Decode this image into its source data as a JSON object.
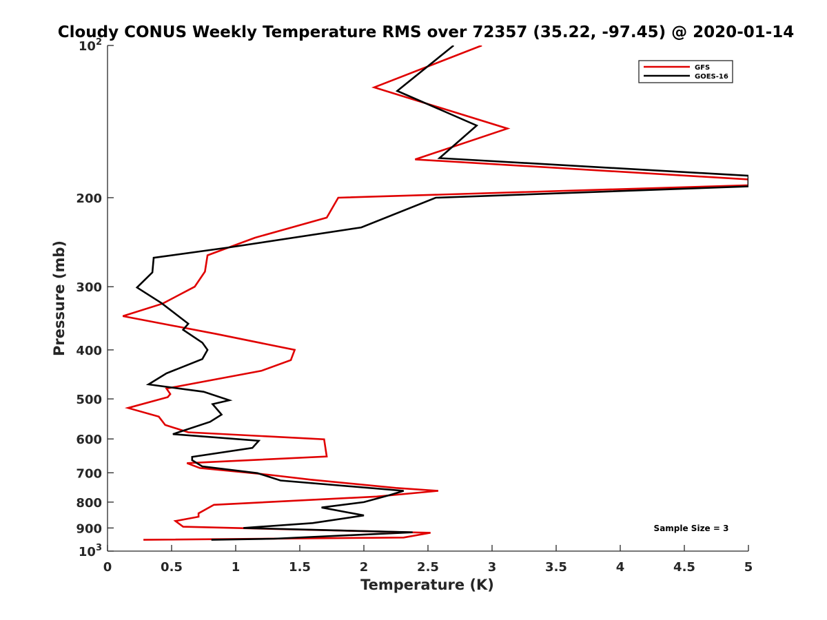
{
  "chart_data": {
    "type": "line",
    "title": "Cloudy CONUS Weekly Temperature RMS over 72357 (35.22, -97.45) @ 2020-01-14",
    "xlabel": "Temperature (K)",
    "ylabel": "Pressure (mb)",
    "xlim": [
      0,
      5
    ],
    "ylim": [
      100,
      1000
    ],
    "y_scale": "log",
    "y_reversed": true,
    "grid": false,
    "legend_position": "top-right",
    "x_ticks": [
      "0",
      "0.5",
      "1",
      "1.5",
      "2",
      "2.5",
      "3",
      "3.5",
      "4",
      "4.5",
      "5"
    ],
    "x_tick_values": [
      0,
      0.5,
      1,
      1.5,
      2,
      2.5,
      3,
      3.5,
      4,
      4.5,
      5
    ],
    "y_ticks": [
      {
        "value": 100,
        "base": "10",
        "exp": "2"
      },
      {
        "value": 200,
        "label": "200"
      },
      {
        "value": 300,
        "label": "300"
      },
      {
        "value": 400,
        "label": "400"
      },
      {
        "value": 500,
        "label": "500"
      },
      {
        "value": 600,
        "label": "600"
      },
      {
        "value": 700,
        "label": "700"
      },
      {
        "value": 800,
        "label": "800"
      },
      {
        "value": 900,
        "label": "900"
      },
      {
        "value": 1000,
        "base": "10",
        "exp": "3"
      }
    ],
    "annotation": "Sample Size = 3",
    "series": [
      {
        "name": "GFS",
        "color": "#e00000",
        "points": [
          [
            2.92,
            100
          ],
          [
            2.08,
            121
          ],
          [
            3.12,
            146
          ],
          [
            2.4,
            168
          ],
          [
            5.0,
            184
          ],
          [
            5.0,
            189
          ],
          [
            1.8,
            200
          ],
          [
            1.71,
            219
          ],
          [
            1.15,
            240
          ],
          [
            0.78,
            260
          ],
          [
            0.76,
            280
          ],
          [
            0.68,
            300
          ],
          [
            0.43,
            324
          ],
          [
            0.12,
            343
          ],
          [
            0.85,
            372
          ],
          [
            1.46,
            400
          ],
          [
            1.43,
            419
          ],
          [
            1.2,
            440
          ],
          [
            0.46,
            477
          ],
          [
            0.49,
            489
          ],
          [
            0.47,
            496
          ],
          [
            0.16,
            521
          ],
          [
            0.4,
            542
          ],
          [
            0.45,
            563
          ],
          [
            0.63,
            582
          ],
          [
            1.69,
            601
          ],
          [
            1.71,
            650
          ],
          [
            0.62,
            670
          ],
          [
            0.72,
            685
          ],
          [
            1.25,
            706
          ],
          [
            1.58,
            722
          ],
          [
            2.25,
            750
          ],
          [
            2.58,
            760
          ],
          [
            2.1,
            780
          ],
          [
            0.83,
            810
          ],
          [
            0.71,
            842
          ],
          [
            0.71,
            855
          ],
          [
            0.53,
            872
          ],
          [
            0.59,
            895
          ],
          [
            2.52,
            920
          ],
          [
            2.31,
            940
          ],
          [
            0.28,
            950
          ]
        ]
      },
      {
        "name": "GOES-16",
        "color": "#000000",
        "points": [
          [
            2.7,
            100
          ],
          [
            2.26,
            123
          ],
          [
            2.88,
            144
          ],
          [
            2.59,
            167
          ],
          [
            5.0,
            181
          ],
          [
            5.0,
            190
          ],
          [
            2.56,
            200
          ],
          [
            1.98,
            229
          ],
          [
            0.94,
            251
          ],
          [
            0.36,
            263
          ],
          [
            0.35,
            281
          ],
          [
            0.23,
            301
          ],
          [
            0.42,
            323
          ],
          [
            0.63,
            355
          ],
          [
            0.59,
            365
          ],
          [
            0.74,
            387
          ],
          [
            0.78,
            400
          ],
          [
            0.74,
            417
          ],
          [
            0.46,
            445
          ],
          [
            0.32,
            468
          ],
          [
            0.75,
            484
          ],
          [
            0.95,
            503
          ],
          [
            0.82,
            512
          ],
          [
            0.89,
            537
          ],
          [
            0.8,
            555
          ],
          [
            0.51,
            587
          ],
          [
            1.18,
            605
          ],
          [
            1.13,
            625
          ],
          [
            0.66,
            651
          ],
          [
            0.66,
            661
          ],
          [
            0.74,
            680
          ],
          [
            1.17,
            701
          ],
          [
            1.35,
            725
          ],
          [
            2.31,
            760
          ],
          [
            2.2,
            775
          ],
          [
            2.0,
            800
          ],
          [
            1.67,
            820
          ],
          [
            2.0,
            850
          ],
          [
            1.6,
            880
          ],
          [
            1.06,
            900
          ],
          [
            2.38,
            918
          ],
          [
            1.3,
            945
          ],
          [
            0.81,
            950
          ]
        ]
      }
    ]
  }
}
